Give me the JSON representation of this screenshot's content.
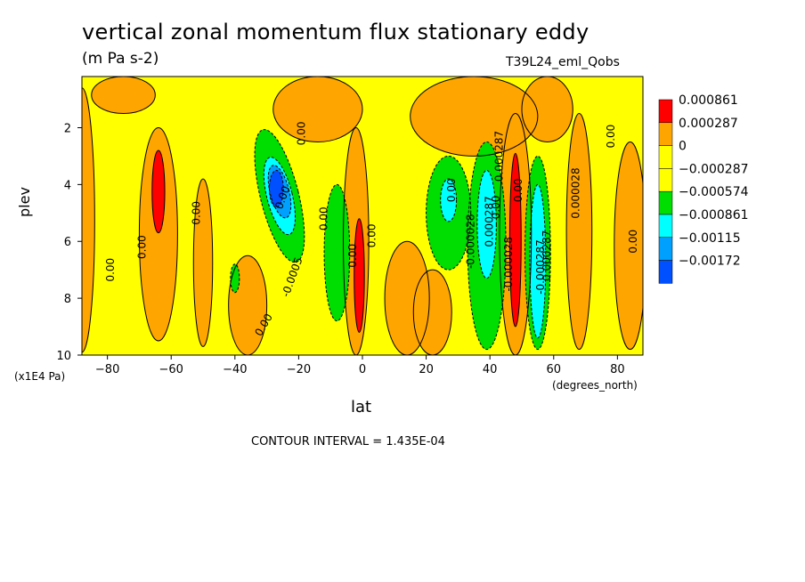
{
  "title": "vertical zonal momentum flux stationary eddy",
  "units": "(m Pa s-2)",
  "run_label": "T39L24_eml_Qobs",
  "y_unit": "(x1E4 Pa)",
  "x_unit": "(degrees_north)",
  "contour_interval": "CONTOUR INTERVAL = 1.435E-04",
  "chart_data": {
    "type": "heatmap",
    "title": "vertical zonal momentum flux stationary eddy",
    "xlabel": "lat",
    "ylabel": "plev",
    "xlim": [
      -88,
      88
    ],
    "ylim": [
      10,
      0.2
    ],
    "x_ticks": [
      -80,
      -60,
      -40,
      -20,
      0,
      20,
      40,
      60,
      80
    ],
    "y_ticks": [
      2,
      4,
      6,
      8,
      10
    ],
    "legend": {
      "placement": "right",
      "levels": [
        "0.000861",
        "0.000287",
        "0",
        "−0.000287",
        "−0.000574",
        "−0.000861",
        "−0.00115",
        "−0.00172"
      ],
      "colors": [
        "#ff0000",
        "#ffa500",
        "#ffff00",
        "#ffff00",
        "#00dd00",
        "#00ffff",
        "#00a0ff",
        "#0050ff"
      ]
    },
    "features": [
      {
        "lat": -64,
        "plev": 4.0,
        "value": 0.0009,
        "kind": "max"
      },
      {
        "lat": -26,
        "plev": 4.2,
        "value": -0.0012,
        "kind": "min"
      },
      {
        "lat": -8,
        "plev": 6.5,
        "value": -0.0006,
        "kind": "min"
      },
      {
        "lat": -1,
        "plev": 7.2,
        "value": 0.0009,
        "kind": "max"
      },
      {
        "lat": 27,
        "plev": 4.5,
        "value": -0.0009,
        "kind": "min"
      },
      {
        "lat": 39,
        "plev": 5.5,
        "value": -0.0009,
        "kind": "min"
      },
      {
        "lat": 48,
        "plev": 6.0,
        "value": 0.0009,
        "kind": "max"
      },
      {
        "lat": 55,
        "plev": 6.5,
        "value": -0.0009,
        "kind": "min"
      }
    ],
    "contour_labels": [
      "0.00",
      "0.00",
      "0.00",
      "0.00",
      "0.00",
      "0.00",
      "0.00",
      "0.00",
      "0.00",
      "0.00",
      "-0.000028",
      "0.000287",
      "0.00",
      "-0.000028",
      "0.00",
      "0.000287",
      "-0.000287",
      "0.000287",
      "0.000028",
      "0.00",
      "0.00",
      "-0.0005"
    ]
  }
}
